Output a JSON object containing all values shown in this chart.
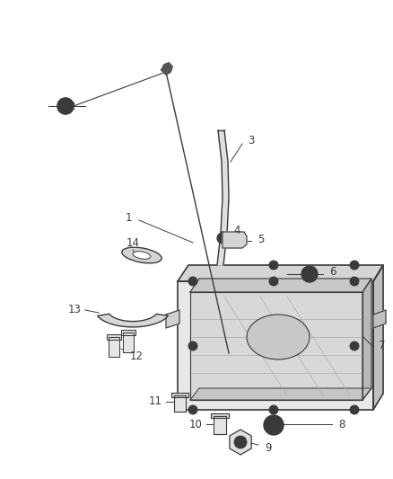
{
  "background_color": "#ffffff",
  "line_color": "#3a3a3a",
  "label_color": "#3a3a3a",
  "figsize": [
    4.38,
    5.33
  ],
  "dpi": 100,
  "xlim": [
    0,
    438
  ],
  "ylim": [
    0,
    533
  ]
}
